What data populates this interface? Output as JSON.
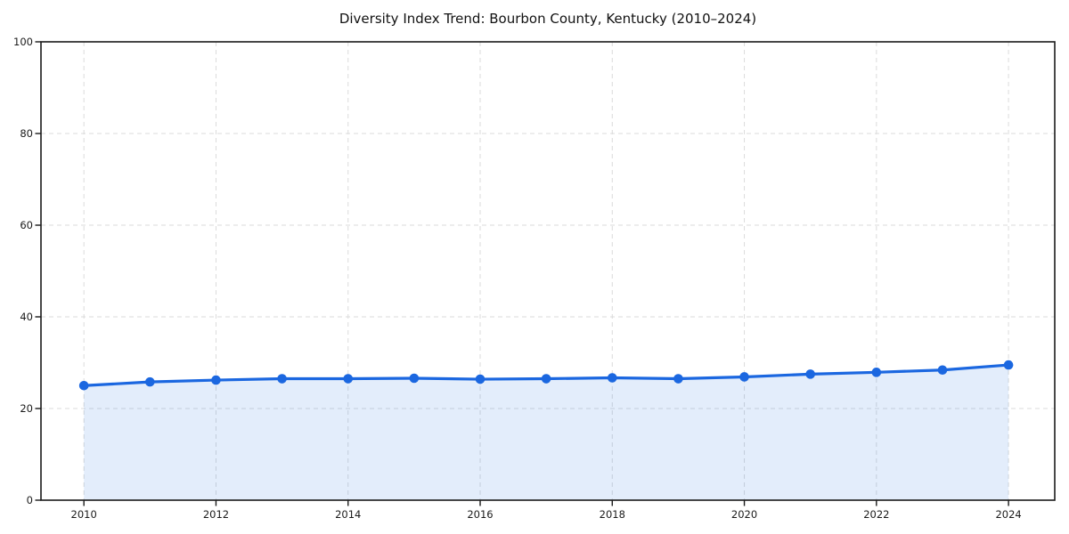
{
  "chart_data": {
    "type": "area",
    "title": "Diversity Index Trend: Bourbon County, Kentucky (2010–2024)",
    "series_name": "Diversity Index",
    "x": [
      2010,
      2011,
      2012,
      2013,
      2014,
      2015,
      2016,
      2017,
      2018,
      2019,
      2020,
      2021,
      2022,
      2023,
      2024
    ],
    "values": [
      25.0,
      25.8,
      26.2,
      26.5,
      26.5,
      26.6,
      26.4,
      26.5,
      26.7,
      26.5,
      26.9,
      27.5,
      27.9,
      28.4,
      29.5
    ],
    "xticks": [
      2010,
      2012,
      2014,
      2016,
      2018,
      2020,
      2022,
      2024
    ],
    "yticks": [
      0,
      20,
      40,
      60,
      80,
      100
    ],
    "xlim": [
      2009.35,
      2024.7
    ],
    "ylim": [
      0,
      100
    ],
    "grid": true,
    "grid_style": "dashed",
    "legend_position": "none",
    "line_color": "#1B67E0",
    "fill_opacity": 0.12,
    "marker": "circle",
    "grid_color": "#DBDBDB",
    "axis_color": "#1A1A1A",
    "background_color": "#FFFFFF"
  }
}
